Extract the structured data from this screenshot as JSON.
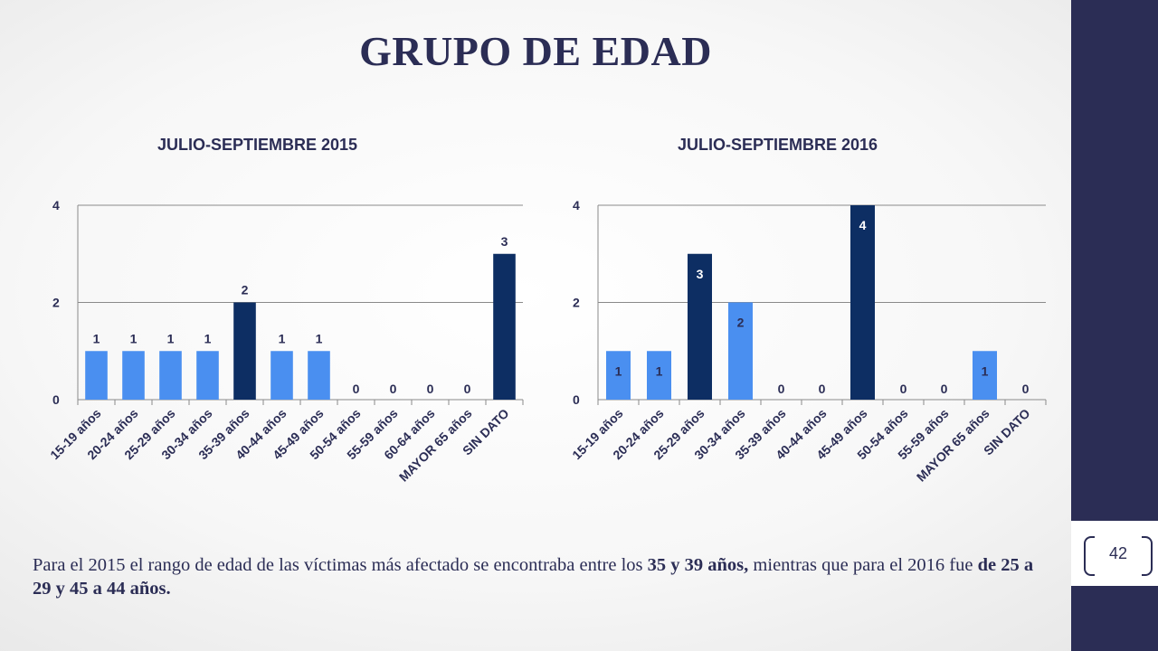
{
  "title": "GRUPO DE EDAD",
  "page_number": "42",
  "footnote": {
    "part1": "Para el 2015 el rango de edad de las víctimas más afectado se encontraba entre los ",
    "bold1": "35 y 39 años,",
    "part2": " mientras que para el 2016 fue ",
    "bold2": "de 25 a 29 y 45 a 44 años."
  },
  "colors": {
    "dark": "#2b2d55",
    "bar_light": "#4a8ff0",
    "bar_dark": "#0d2e63",
    "band": "#2b2d55"
  },
  "chart_data": [
    {
      "type": "bar",
      "title": "JULIO-SEPTIEMBRE 2015",
      "categories": [
        "15-19 años",
        "20-24 años",
        "25-29 años",
        "30-34 años",
        "35-39 años",
        "40-44  años",
        "45-49 años",
        "50-54 años",
        "55-59 años",
        "60-64 años",
        "MAYOR 65 años",
        "SIN DATO"
      ],
      "values": [
        1,
        1,
        1,
        1,
        2,
        1,
        1,
        0,
        0,
        0,
        0,
        3
      ],
      "highlight": [
        false,
        false,
        false,
        false,
        true,
        false,
        false,
        false,
        false,
        false,
        false,
        true
      ],
      "ylim": [
        0,
        4
      ],
      "yticks": [
        0,
        2,
        4
      ],
      "grid": true
    },
    {
      "type": "bar",
      "title": "JULIO-SEPTIEMBRE 2016",
      "categories": [
        "15-19 años",
        "20-24 años",
        "25-29 años",
        "30-34 años",
        "35-39 años",
        "40-44  años",
        "45-49 años",
        "50-54 años",
        "55-59 años",
        "MAYOR 65 años",
        "SIN DATO"
      ],
      "values": [
        1,
        1,
        3,
        2,
        0,
        0,
        4,
        0,
        0,
        1,
        0
      ],
      "highlight": [
        false,
        false,
        true,
        false,
        false,
        false,
        true,
        false,
        false,
        false,
        false
      ],
      "ylim": [
        0,
        4
      ],
      "yticks": [
        0,
        2,
        4
      ],
      "grid": true
    }
  ]
}
